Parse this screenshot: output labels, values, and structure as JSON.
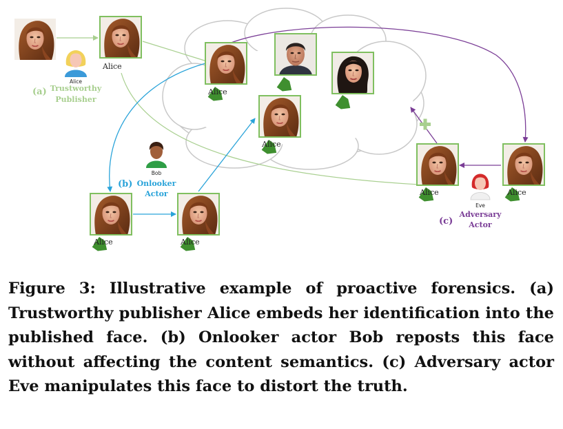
{
  "labels": {
    "alice_avatar": "Alice",
    "bob_avatar": "Bob",
    "eve_avatar": "Eve",
    "tag_alice": "Alice",
    "a_marker": "(a)",
    "a_role_line1": "Trustworthy",
    "a_role_line2": "Publisher",
    "b_marker": "(b)",
    "b_role_line1": "Onlooker",
    "b_role_line2": "Actor",
    "c_marker": "(c)",
    "c_role_line1": "Adversary",
    "c_role_line2": "Actor"
  },
  "colors": {
    "publisher": "#a8cf8f",
    "onlooker": "#29a3d9",
    "adversary": "#7a3d96",
    "tag": "#3f8f2f",
    "frame": "#7fbf5f",
    "cloud": "#c8c8c8"
  },
  "caption": {
    "text": "Figure 3: Illustrative example of proactive forensics. (a) Trustworthy publisher Alice embeds her identification into the published face. (b) Onlooker actor Bob reposts this face without affecting the content semantics. (c) Adversary actor Eve manipulates this face to distort the truth."
  }
}
